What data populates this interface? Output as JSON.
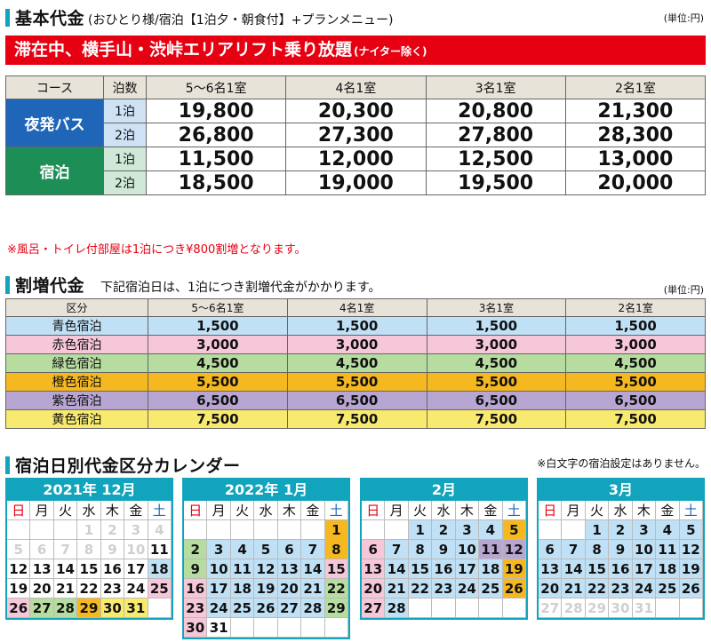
{
  "basic": {
    "title": "基本代金",
    "subtitle": "(おひとり様/宿泊【1泊夕・朝食付】+プランメニュー)",
    "unit": "(単位:円)",
    "banner": "滞在中、横手山・渋峠エリアリフト乗り放題",
    "banner_note": "(ナイター除く)",
    "headers": [
      "コース",
      "泊数",
      "5〜6名1室",
      "4名1室",
      "3名1室",
      "2名1室"
    ],
    "bus_label": "夜発バス",
    "stay_label": "宿泊",
    "rows": [
      {
        "nights": "1泊",
        "prices": [
          "19,800",
          "20,300",
          "20,800",
          "21,300"
        ]
      },
      {
        "nights": "2泊",
        "prices": [
          "26,800",
          "27,300",
          "27,800",
          "28,300"
        ]
      },
      {
        "nights": "1泊",
        "prices": [
          "11,500",
          "12,000",
          "12,500",
          "13,000"
        ]
      },
      {
        "nights": "2泊",
        "prices": [
          "18,500",
          "19,000",
          "19,500",
          "20,000"
        ]
      }
    ],
    "note": "※風呂・トイレ付部屋は1泊につき¥800割増となります。"
  },
  "extra": {
    "title": "割増代金",
    "subtitle": "下記宿泊日は、1泊につき割増代金がかかります。",
    "unit": "(単位:円)",
    "headers": [
      "区分",
      "5〜6名1室",
      "4名1室",
      "3名1室",
      "2名1室"
    ],
    "rows": [
      {
        "label": "青色宿泊",
        "color": "#bfe0f5",
        "values": [
          "1,500",
          "1,500",
          "1,500",
          "1,500"
        ]
      },
      {
        "label": "赤色宿泊",
        "color": "#f6c6d9",
        "values": [
          "3,000",
          "3,000",
          "3,000",
          "3,000"
        ]
      },
      {
        "label": "緑色宿泊",
        "color": "#b7dca0",
        "values": [
          "4,500",
          "4,500",
          "4,500",
          "4,500"
        ]
      },
      {
        "label": "橙色宿泊",
        "color": "#f5b820",
        "values": [
          "5,500",
          "5,500",
          "5,500",
          "5,500"
        ]
      },
      {
        "label": "紫色宿泊",
        "color": "#b7a5d2",
        "values": [
          "6,500",
          "6,500",
          "6,500",
          "6,500"
        ]
      },
      {
        "label": "黄色宿泊",
        "color": "#f8ea6e",
        "values": [
          "7,500",
          "7,500",
          "7,500",
          "7,500"
        ]
      }
    ]
  },
  "calendar": {
    "title": "宿泊日別代金区分カレンダー",
    "note": "※白文字の宿泊設定はありません。",
    "weekdays": [
      "日",
      "月",
      "火",
      "水",
      "木",
      "金",
      "土"
    ],
    "months": [
      {
        "label": "2021年 12月",
        "cells": [
          [
            "",
            ""
          ],
          [
            "",
            ""
          ],
          [
            "",
            ""
          ],
          [
            "1",
            "white"
          ],
          [
            "2",
            "white"
          ],
          [
            "3",
            "white"
          ],
          [
            "4",
            "white"
          ],
          [
            "5",
            "white"
          ],
          [
            "6",
            "white"
          ],
          [
            "7",
            "white"
          ],
          [
            "8",
            "white"
          ],
          [
            "9",
            "white"
          ],
          [
            "10",
            "white"
          ],
          [
            "11",
            ""
          ],
          [
            "12",
            ""
          ],
          [
            "13",
            ""
          ],
          [
            "14",
            ""
          ],
          [
            "15",
            ""
          ],
          [
            "16",
            ""
          ],
          [
            "17",
            ""
          ],
          [
            "18",
            "blue"
          ],
          [
            "19",
            ""
          ],
          [
            "20",
            ""
          ],
          [
            "21",
            ""
          ],
          [
            "22",
            ""
          ],
          [
            "23",
            ""
          ],
          [
            "24",
            ""
          ],
          [
            "25",
            "pink"
          ],
          [
            "26",
            "pink"
          ],
          [
            "27",
            "green"
          ],
          [
            "28",
            "green"
          ],
          [
            "29",
            "orange"
          ],
          [
            "30",
            "yellow"
          ],
          [
            "31",
            "yellow"
          ],
          [
            "",
            ""
          ]
        ]
      },
      {
        "label": "2022年 1月",
        "cells": [
          [
            "",
            ""
          ],
          [
            "",
            ""
          ],
          [
            "",
            ""
          ],
          [
            "",
            ""
          ],
          [
            "",
            ""
          ],
          [
            "",
            ""
          ],
          [
            "1",
            "orange"
          ],
          [
            "2",
            "green"
          ],
          [
            "3",
            "blue"
          ],
          [
            "4",
            "blue"
          ],
          [
            "5",
            "blue"
          ],
          [
            "6",
            "blue"
          ],
          [
            "7",
            "blue"
          ],
          [
            "8",
            "orange"
          ],
          [
            "9",
            "green"
          ],
          [
            "10",
            "blue"
          ],
          [
            "11",
            "blue"
          ],
          [
            "12",
            "blue"
          ],
          [
            "13",
            "blue"
          ],
          [
            "14",
            "blue"
          ],
          [
            "15",
            "pink"
          ],
          [
            "16",
            "pink"
          ],
          [
            "17",
            "blue"
          ],
          [
            "18",
            "blue"
          ],
          [
            "19",
            "blue"
          ],
          [
            "20",
            "blue"
          ],
          [
            "21",
            "blue"
          ],
          [
            "22",
            "green"
          ],
          [
            "23",
            "pink"
          ],
          [
            "24",
            "blue"
          ],
          [
            "25",
            "blue"
          ],
          [
            "26",
            "blue"
          ],
          [
            "27",
            "blue"
          ],
          [
            "28",
            "blue"
          ],
          [
            "29",
            "green"
          ],
          [
            "30",
            "pink"
          ],
          [
            "31",
            ""
          ],
          [
            "",
            ""
          ],
          [
            "",
            ""
          ],
          [
            "",
            ""
          ],
          [
            "",
            ""
          ],
          [
            "",
            ""
          ]
        ]
      },
      {
        "label": "2月",
        "cells": [
          [
            "",
            ""
          ],
          [
            "",
            ""
          ],
          [
            "1",
            "blue"
          ],
          [
            "2",
            "blue"
          ],
          [
            "3",
            "blue"
          ],
          [
            "4",
            "blue"
          ],
          [
            "5",
            "orange"
          ],
          [
            "6",
            "pink"
          ],
          [
            "7",
            "blue"
          ],
          [
            "8",
            "blue"
          ],
          [
            "9",
            "blue"
          ],
          [
            "10",
            "blue"
          ],
          [
            "11",
            "purple"
          ],
          [
            "12",
            "purple"
          ],
          [
            "13",
            "pink"
          ],
          [
            "14",
            "blue"
          ],
          [
            "15",
            "blue"
          ],
          [
            "16",
            "blue"
          ],
          [
            "17",
            "blue"
          ],
          [
            "18",
            "blue"
          ],
          [
            "19",
            "orange"
          ],
          [
            "20",
            "pink"
          ],
          [
            "21",
            "blue"
          ],
          [
            "22",
            "blue"
          ],
          [
            "23",
            "blue"
          ],
          [
            "24",
            "blue"
          ],
          [
            "25",
            "blue"
          ],
          [
            "26",
            "orange"
          ],
          [
            "27",
            "pink"
          ],
          [
            "28",
            "blue"
          ],
          [
            "",
            ""
          ],
          [
            "",
            ""
          ],
          [
            "",
            ""
          ],
          [
            "",
            ""
          ],
          [
            "",
            ""
          ]
        ]
      },
      {
        "label": "3月",
        "cells": [
          [
            "",
            ""
          ],
          [
            "",
            ""
          ],
          [
            "1",
            "blue"
          ],
          [
            "2",
            "blue"
          ],
          [
            "3",
            "blue"
          ],
          [
            "4",
            "blue"
          ],
          [
            "5",
            "blue"
          ],
          [
            "6",
            "blue"
          ],
          [
            "7",
            "blue"
          ],
          [
            "8",
            "blue"
          ],
          [
            "9",
            "blue"
          ],
          [
            "10",
            "blue"
          ],
          [
            "11",
            "blue"
          ],
          [
            "12",
            "blue"
          ],
          [
            "13",
            "blue"
          ],
          [
            "14",
            "blue"
          ],
          [
            "15",
            "blue"
          ],
          [
            "16",
            "blue"
          ],
          [
            "17",
            "blue"
          ],
          [
            "18",
            "blue"
          ],
          [
            "19",
            "blue"
          ],
          [
            "20",
            "blue"
          ],
          [
            "21",
            "blue"
          ],
          [
            "22",
            "blue"
          ],
          [
            "23",
            "blue"
          ],
          [
            "24",
            "blue"
          ],
          [
            "25",
            "blue"
          ],
          [
            "26",
            "blue"
          ],
          [
            "27",
            "white"
          ],
          [
            "28",
            "white"
          ],
          [
            "29",
            "white"
          ],
          [
            "30",
            "white"
          ],
          [
            "31",
            "white"
          ],
          [
            "",
            ""
          ],
          [
            "",
            ""
          ]
        ]
      }
    ]
  }
}
